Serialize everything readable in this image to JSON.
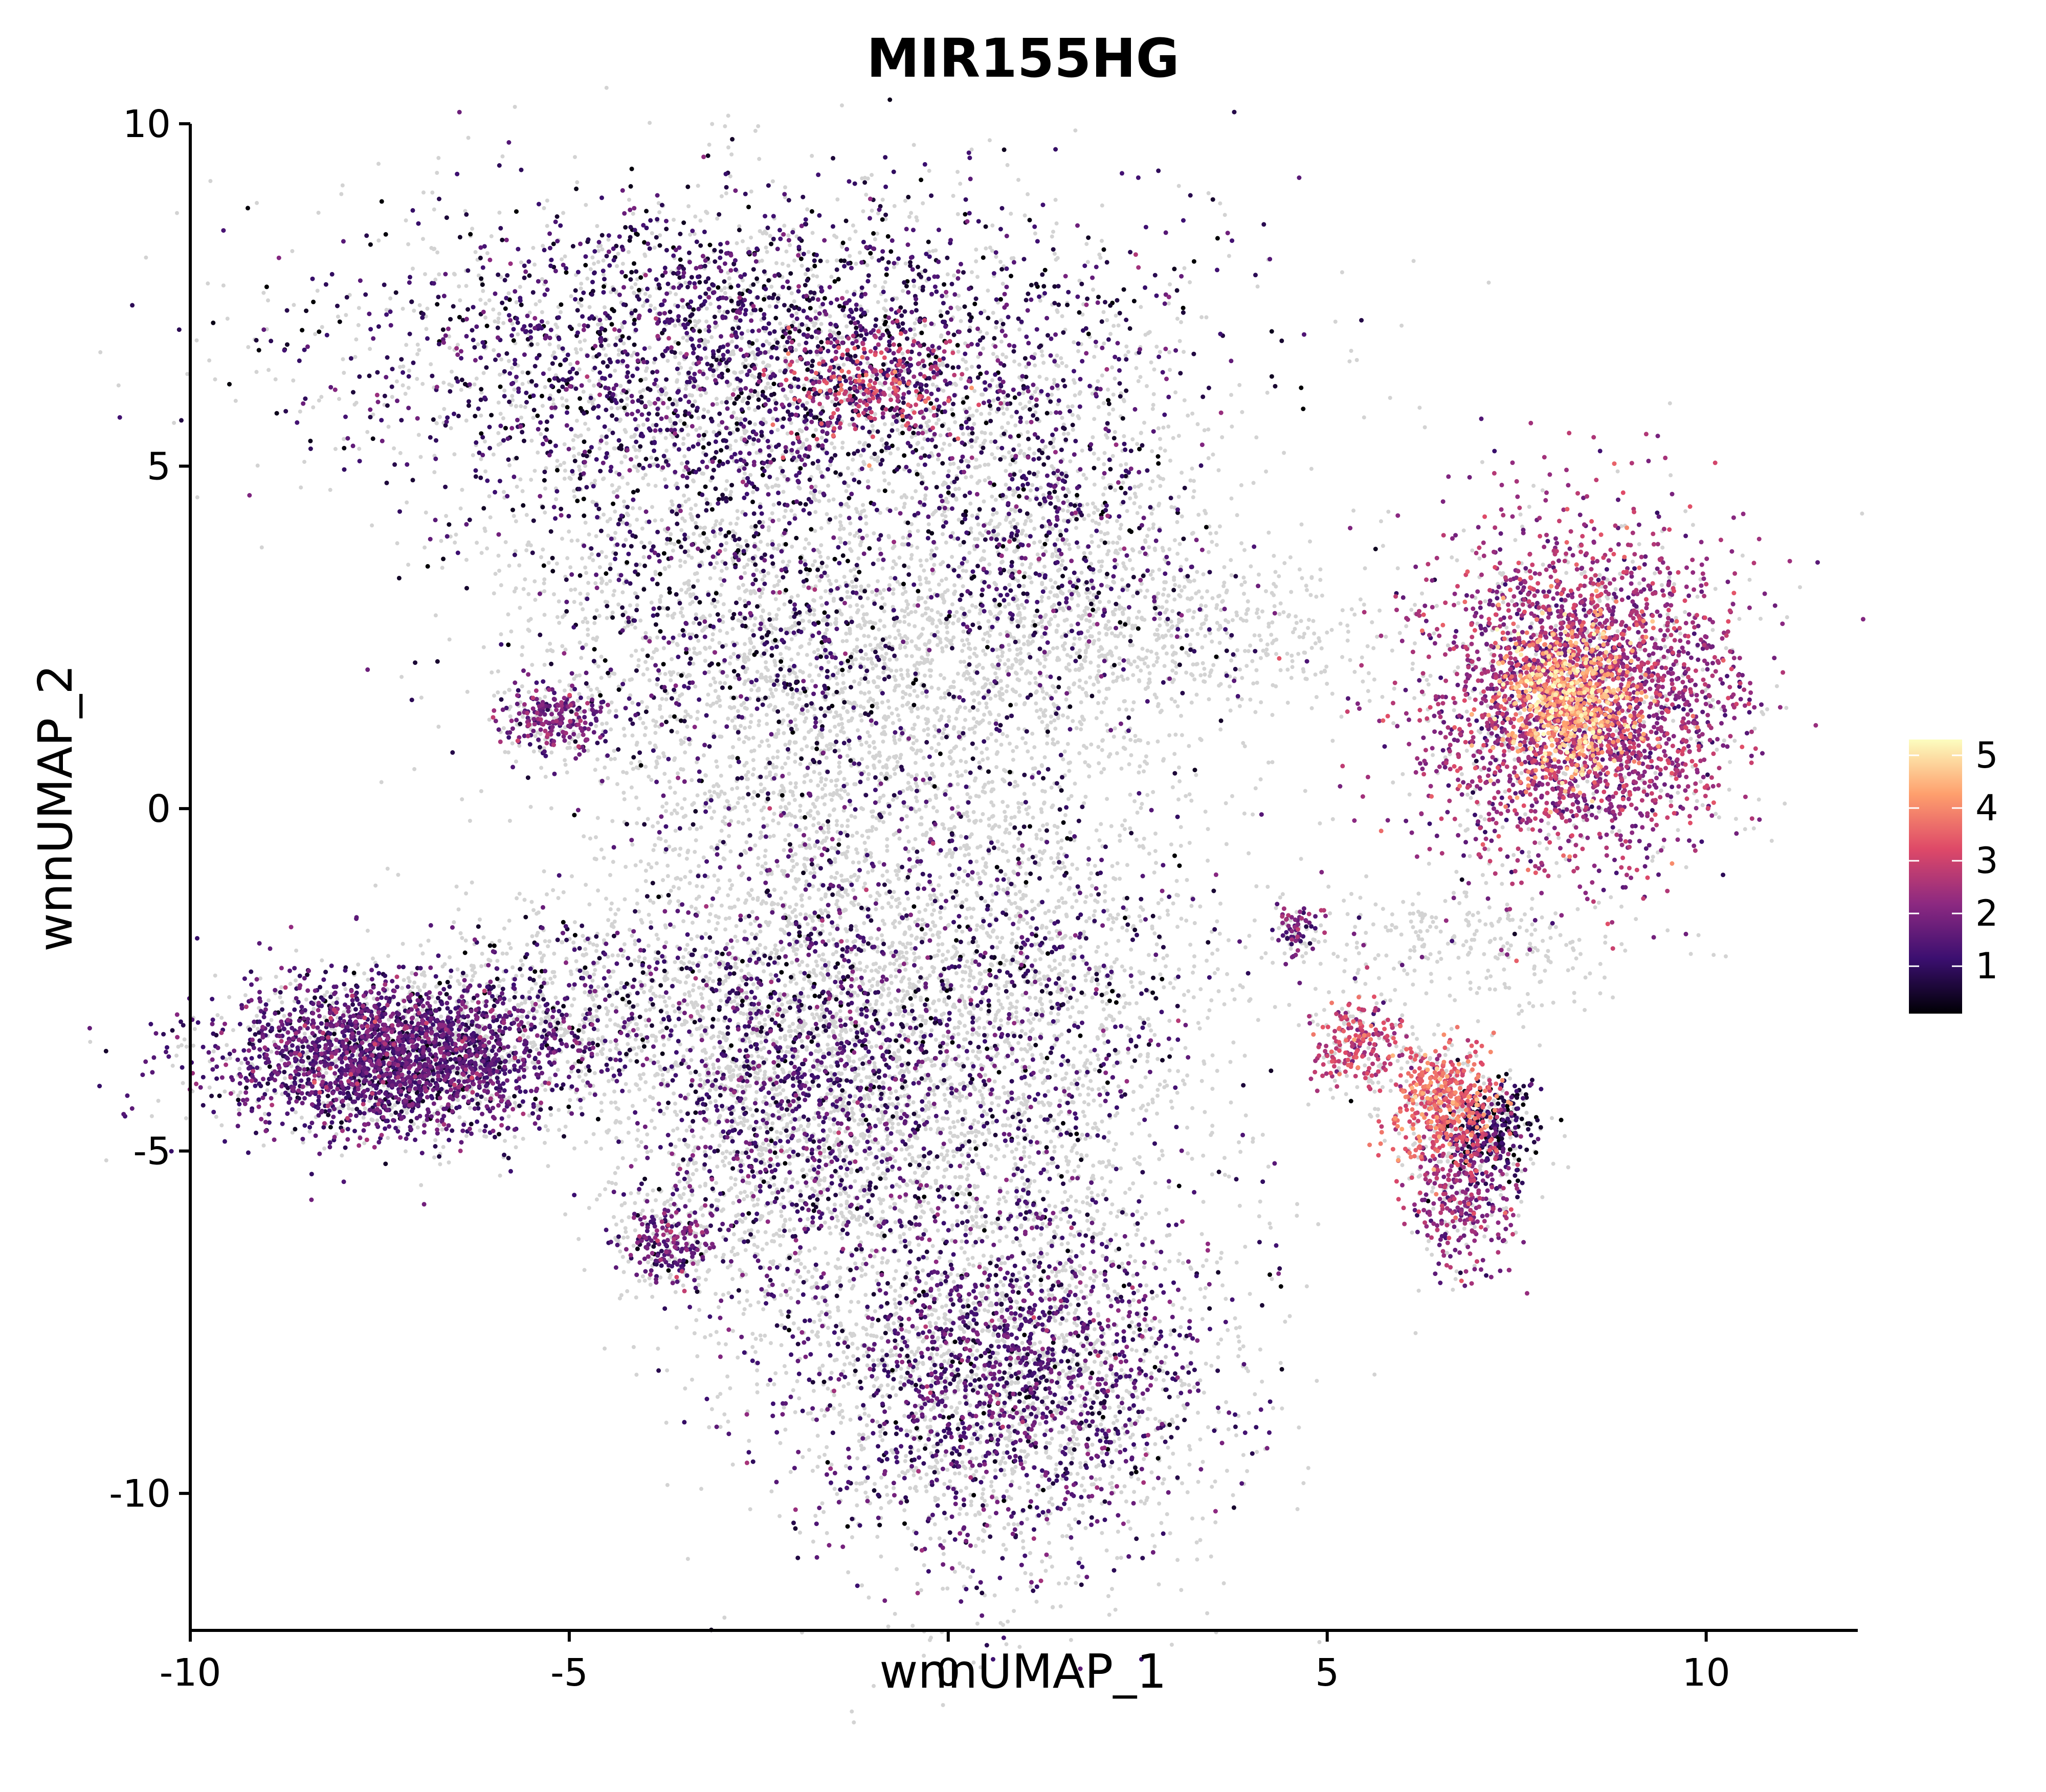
{
  "chart_data": {
    "type": "scatter",
    "title": "MIR155HG",
    "xlabel": "wnnUMAP_1",
    "ylabel": "wnnUMAP_2",
    "xlim": [
      -10,
      12
    ],
    "ylim": [
      -12,
      10
    ],
    "x_ticks": [
      -10,
      -5,
      0,
      5,
      10
    ],
    "y_ticks": [
      10,
      5,
      0,
      -5,
      -10
    ],
    "x_tick_labels": [
      "-10",
      "-5",
      "0",
      "5",
      "10"
    ],
    "y_tick_labels": [
      "10",
      "5",
      "0",
      "-5",
      "-10"
    ],
    "grid": false,
    "background_point_color": "#d3d3d3",
    "colorbar": {
      "min": 0.1,
      "max": 5.3,
      "ticks": [
        1,
        2,
        3,
        4,
        5
      ],
      "tick_labels": [
        "1",
        "2",
        "3",
        "4",
        "5"
      ],
      "colors": [
        "#000004",
        "#3b0f70",
        "#8c2981",
        "#de4968",
        "#fe9f6d",
        "#fcfdbf"
      ],
      "placement": "right"
    },
    "series": [
      {
        "clusters": [
          {
            "cx": -2.5,
            "cy": 6.7,
            "sx": 2.6,
            "sy": 1.1,
            "n": 2000,
            "bg": 1300,
            "mean": 1.0
          },
          {
            "cx": -1.0,
            "cy": 6.2,
            "sx": 0.6,
            "sy": 0.4,
            "n": 260,
            "bg": 0,
            "mean": 2.8
          },
          {
            "cx": -3.2,
            "cy": 3.5,
            "sx": 1.4,
            "sy": 1.6,
            "n": 650,
            "bg": 900,
            "mean": 0.9
          },
          {
            "cx": 1.2,
            "cy": 4.0,
            "sx": 1.0,
            "sy": 1.2,
            "n": 450,
            "bg": 700,
            "mean": 1.0
          },
          {
            "cx": -1.0,
            "cy": 1.5,
            "sx": 1.7,
            "sy": 1.3,
            "n": 250,
            "bg": 1800,
            "mean": 0.9
          },
          {
            "cx": -5.2,
            "cy": 1.3,
            "sx": 0.35,
            "sy": 0.25,
            "n": 200,
            "bg": 80,
            "mean": 1.8
          },
          {
            "cx": 3.2,
            "cy": 2.6,
            "sx": 1.3,
            "sy": 0.6,
            "n": 40,
            "bg": 500,
            "mean": 1.2
          },
          {
            "cx": 8.3,
            "cy": 1.6,
            "sx": 1.0,
            "sy": 1.2,
            "n": 2600,
            "bg": 500,
            "mean": 2.3
          },
          {
            "cx": 8.2,
            "cy": 1.6,
            "sx": 0.45,
            "sy": 0.55,
            "n": 700,
            "bg": 0,
            "mean": 4.3
          },
          {
            "cx": -7.3,
            "cy": -3.6,
            "sx": 1.1,
            "sy": 0.55,
            "n": 2200,
            "bg": 700,
            "mean": 1.4
          },
          {
            "cx": -5.0,
            "cy": -2.8,
            "sx": 1.0,
            "sy": 0.7,
            "n": 200,
            "bg": 500,
            "mean": 1.0
          },
          {
            "cx": -2.0,
            "cy": -3.8,
            "sx": 1.1,
            "sy": 1.8,
            "n": 1200,
            "bg": 2200,
            "mean": 1.2
          },
          {
            "cx": 0.8,
            "cy": -3.0,
            "sx": 1.3,
            "sy": 1.6,
            "n": 600,
            "bg": 1600,
            "mean": 1.0
          },
          {
            "cx": 0.8,
            "cy": -8.3,
            "sx": 1.3,
            "sy": 1.3,
            "n": 1500,
            "bg": 1700,
            "mean": 1.3
          },
          {
            "cx": -3.7,
            "cy": -6.3,
            "sx": 0.3,
            "sy": 0.3,
            "n": 180,
            "bg": 80,
            "mean": 1.6
          },
          {
            "cx": 6.5,
            "cy": -4.3,
            "sx": 0.35,
            "sy": 0.45,
            "n": 450,
            "bg": 150,
            "mean": 3.4
          },
          {
            "cx": 7.2,
            "cy": -4.7,
            "sx": 0.3,
            "sy": 0.35,
            "n": 250,
            "bg": 80,
            "mean": 0.7
          },
          {
            "cx": 6.8,
            "cy": -5.7,
            "sx": 0.35,
            "sy": 0.5,
            "n": 300,
            "bg": 80,
            "mean": 2.2
          },
          {
            "cx": 5.4,
            "cy": -3.4,
            "sx": 0.3,
            "sy": 0.35,
            "n": 180,
            "bg": 80,
            "mean": 2.8
          },
          {
            "cx": 4.6,
            "cy": -1.8,
            "sx": 0.15,
            "sy": 0.2,
            "n": 60,
            "bg": 30,
            "mean": 1.6
          },
          {
            "cx": 6.8,
            "cy": -2.0,
            "sx": 1.0,
            "sy": 0.4,
            "n": 10,
            "bg": 250,
            "mean": 1.0
          }
        ]
      }
    ]
  }
}
